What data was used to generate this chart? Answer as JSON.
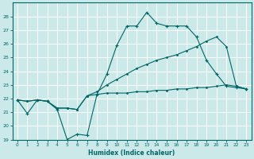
{
  "xlabel": "Humidex (Indice chaleur)",
  "background_color": "#cce9e9",
  "grid_color": "#ffffff",
  "line_color": "#006666",
  "xlim": [
    -0.5,
    23.5
  ],
  "ylim": [
    19,
    29
  ],
  "yticks": [
    19,
    20,
    21,
    22,
    23,
    24,
    25,
    26,
    27,
    28
  ],
  "xticks": [
    0,
    1,
    2,
    3,
    4,
    5,
    6,
    7,
    8,
    9,
    10,
    11,
    12,
    13,
    14,
    15,
    16,
    17,
    18,
    19,
    20,
    21,
    22,
    23
  ],
  "line1_y": [
    21.9,
    20.9,
    21.9,
    21.8,
    21.2,
    19.0,
    19.4,
    19.3,
    22.3,
    23.8,
    25.9,
    27.3,
    27.3,
    28.3,
    27.5,
    27.3,
    27.3,
    27.3,
    26.5,
    24.8,
    23.8,
    22.9,
    22.8,
    22.7
  ],
  "line2_y": [
    21.9,
    21.8,
    21.9,
    21.8,
    21.3,
    21.3,
    21.2,
    22.2,
    22.3,
    22.4,
    22.4,
    22.4,
    22.5,
    22.5,
    22.6,
    22.6,
    22.7,
    22.7,
    22.8,
    22.8,
    22.9,
    23.0,
    22.9,
    22.7
  ],
  "line3_y": [
    21.9,
    21.8,
    21.9,
    21.8,
    21.3,
    21.3,
    21.2,
    22.2,
    22.5,
    23.0,
    23.4,
    23.8,
    24.2,
    24.5,
    24.8,
    25.0,
    25.2,
    25.5,
    25.8,
    26.2,
    26.5,
    25.8,
    22.9,
    22.7
  ]
}
